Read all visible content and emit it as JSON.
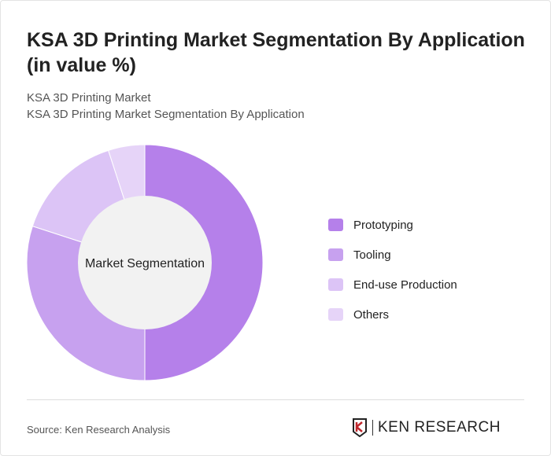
{
  "title": "KSA 3D Printing Market Segmentation By Application (in value %)",
  "subtitle1": "KSA 3D Printing Market",
  "subtitle2": "KSA 3D Printing Market Segmentation By Application",
  "source": "Source: Ken Research Analysis",
  "logo_text": "KEN RESEARCH",
  "chart_data": {
    "type": "pie",
    "donut": true,
    "center_label": "Market Segmentation",
    "categories": [
      "Prototyping",
      "Tooling",
      "End-use Production",
      "Others"
    ],
    "values": [
      50,
      30,
      15,
      5
    ],
    "colors": [
      "#b580ea",
      "#c7a1ef",
      "#dcc4f6",
      "#e6d4f8"
    ],
    "legend_position": "right"
  }
}
